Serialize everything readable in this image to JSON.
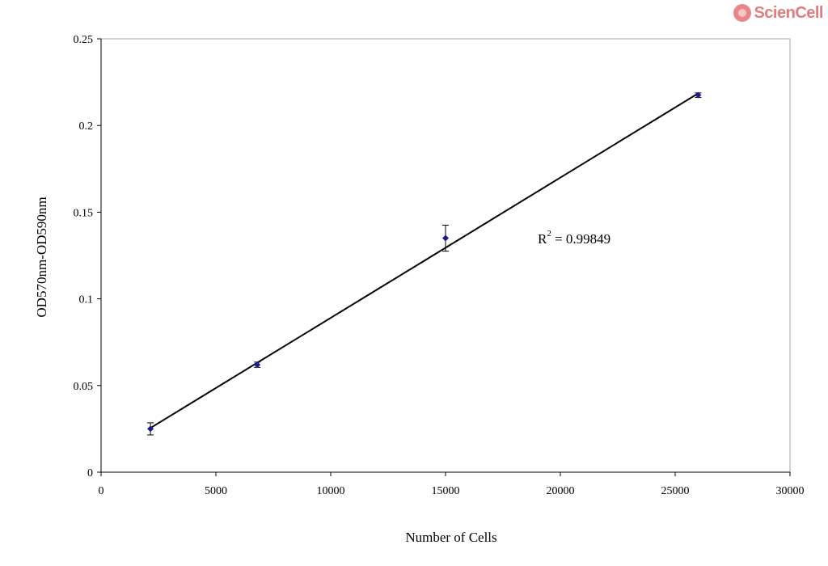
{
  "logo": {
    "text": "ScienCell",
    "color": "#e27c80"
  },
  "chart_data": {
    "type": "scatter",
    "xlabel": "Number of Cells",
    "ylabel": "OD570nm-OD590nm",
    "xlim": [
      0,
      30000
    ],
    "ylim": [
      0,
      0.25
    ],
    "xticks": [
      0,
      5000,
      10000,
      15000,
      20000,
      25000,
      30000
    ],
    "yticks": [
      "0",
      "0.05",
      "0.1",
      "0.15",
      "0.2",
      "0.25"
    ],
    "grid": false,
    "legend": false,
    "series": [
      {
        "x": [
          2150,
          6800,
          15000,
          26000
        ],
        "y": [
          0.025,
          0.062,
          0.135,
          0.2175
        ],
        "yerr": [
          0.0035,
          0.0015,
          0.0075,
          0.0013
        ],
        "color": "#1b1b8c"
      }
    ],
    "trendline": {
      "x": [
        2150,
        26000
      ],
      "y": [
        0.0255,
        0.2185
      ],
      "color": "#000000"
    },
    "annotations": [
      {
        "text": "R",
        "superscript": "2",
        "suffix": " = 0.99849"
      }
    ]
  }
}
